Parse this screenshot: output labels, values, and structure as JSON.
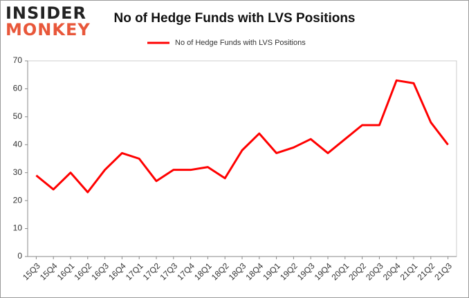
{
  "logo": {
    "line1": "INSIDER",
    "line2": "MONKEY"
  },
  "chart_data": {
    "type": "line",
    "title": "No of Hedge Funds with LVS Positions",
    "categories": [
      "15Q3",
      "15Q4",
      "16Q1",
      "16Q2",
      "16Q3",
      "16Q4",
      "17Q1",
      "17Q2",
      "17Q3",
      "17Q4",
      "18Q1",
      "18Q2",
      "18Q3",
      "18Q4",
      "19Q1",
      "19Q2",
      "19Q3",
      "19Q4",
      "20Q1",
      "20Q2",
      "20Q3",
      "20Q4",
      "21Q1",
      "21Q2",
      "21Q3"
    ],
    "series": [
      {
        "name": "No of Hedge Funds with LVS Positions",
        "color": "#ff0000",
        "values": [
          29,
          24,
          30,
          23,
          31,
          37,
          35,
          27,
          31,
          31,
          32,
          28,
          38,
          44,
          37,
          39,
          42,
          37,
          42,
          47,
          47,
          63,
          62,
          48,
          40
        ]
      }
    ],
    "ylim": [
      0,
      70
    ],
    "yticks": [
      0,
      10,
      20,
      30,
      40,
      50,
      60,
      70
    ],
    "grid": false,
    "legend": "top"
  }
}
